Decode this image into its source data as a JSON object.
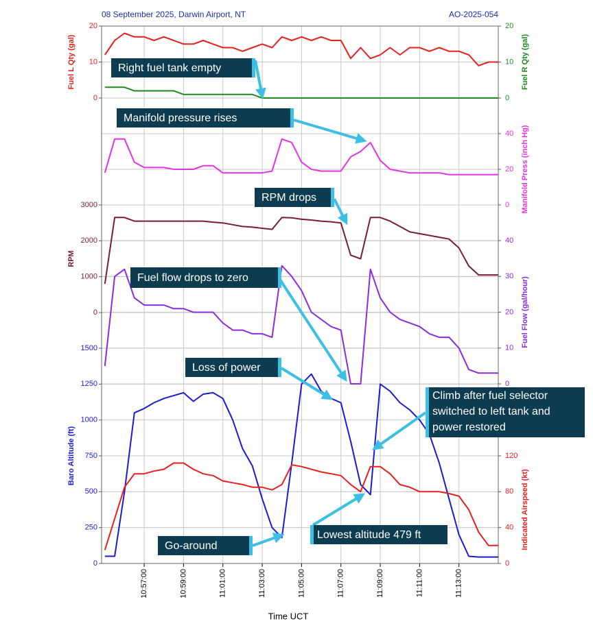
{
  "chart_data": {
    "type": "line",
    "subtitle": "08 September 2025, Darwin Airport, NT",
    "report_id": "AO-2025-054",
    "xlabel": "Time UCT",
    "grid": true,
    "x": [
      "10:55:00",
      "10:55:30",
      "10:56:00",
      "10:56:30",
      "10:57:00",
      "10:57:30",
      "10:58:00",
      "10:58:30",
      "10:59:00",
      "10:59:30",
      "11:00:00",
      "11:00:30",
      "11:01:00",
      "11:01:30",
      "11:02:00",
      "11:02:30",
      "11:03:00",
      "11:03:30",
      "11:04:00",
      "11:04:30",
      "11:05:00",
      "11:05:30",
      "11:06:00",
      "11:06:30",
      "11:07:00",
      "11:07:30",
      "11:08:00",
      "11:08:30",
      "11:09:00",
      "11:09:30",
      "11:10:00",
      "11:10:30",
      "11:11:00",
      "11:11:30",
      "11:12:00",
      "11:12:30",
      "11:13:00",
      "11:13:30",
      "11:14:00",
      "11:14:30",
      "11:15:00"
    ],
    "xlim": [
      "10:54:50",
      "11:15:00"
    ],
    "xticks": [
      "10:57:00",
      "10:59:00",
      "11:01:00",
      "11:03:00",
      "11:05:00",
      "11:07:00",
      "11:09:00",
      "11:11:00",
      "11:13:00"
    ],
    "axes": [
      {
        "label": "Fuel L Qty (gal)",
        "side": "left",
        "color": "#e8201c",
        "lim": [
          0,
          20
        ],
        "ticks": [
          0,
          10,
          20
        ]
      },
      {
        "label": "Fuel R Qty (gal)",
        "side": "right",
        "color": "#1e8a1e",
        "lim": [
          0,
          20
        ],
        "ticks": [
          0,
          10,
          20
        ]
      },
      {
        "label": "Manifold Press (inch Hg)",
        "side": "right",
        "color": "#e632e6",
        "lim": [
          0,
          40
        ],
        "ticks": [
          0,
          20,
          40
        ]
      },
      {
        "label": "RPM",
        "side": "left",
        "color": "#7a1a3a",
        "lim": [
          0,
          3000
        ],
        "ticks": [
          0,
          1000,
          2000,
          3000
        ]
      },
      {
        "label": "Fuel Flow (gal/hour)",
        "side": "right",
        "color": "#8a2be2",
        "lim": [
          0,
          40
        ],
        "ticks": [
          0,
          10,
          20,
          30,
          40
        ]
      },
      {
        "label": "Baro Altitude (ft)",
        "side": "left",
        "color": "#1a1ad8",
        "lim": [
          0,
          1500
        ],
        "ticks": [
          0,
          250,
          500,
          750,
          1000,
          1250,
          1500
        ]
      },
      {
        "label": "Indicated Airspeed (kt)",
        "side": "right",
        "color": "#e8201c",
        "lim": [
          0,
          120
        ],
        "ticks": [
          0,
          40,
          80,
          120
        ]
      }
    ],
    "series": [
      {
        "name": "Fuel L Qty",
        "axis": 0,
        "color": "#e8201c",
        "values": [
          12,
          16,
          18,
          17,
          17,
          16,
          17,
          16,
          15,
          15,
          16,
          15,
          14,
          14,
          13,
          14,
          15,
          14,
          17,
          16,
          17,
          16,
          17,
          16,
          16,
          11,
          14,
          11,
          12,
          14,
          12,
          14,
          14,
          13,
          14,
          13,
          13,
          12,
          9,
          10,
          10
        ]
      },
      {
        "name": "Fuel R Qty",
        "axis": 1,
        "color": "#1e8a1e",
        "values": [
          3,
          3,
          3,
          2,
          2,
          2,
          2,
          2,
          1,
          1,
          1,
          1,
          1,
          1,
          1,
          1,
          0,
          0,
          0,
          0,
          0,
          0,
          0,
          0,
          0,
          0,
          0,
          0,
          0,
          0,
          0,
          0,
          0,
          0,
          0,
          0,
          0,
          0,
          0,
          0,
          0
        ]
      },
      {
        "name": "Manifold Press",
        "axis": 2,
        "color": "#e632e6",
        "values": [
          18,
          37,
          37,
          24,
          21,
          21,
          21,
          20,
          20,
          20,
          22,
          22,
          18,
          18,
          18,
          18,
          18,
          19,
          37,
          35,
          24,
          20,
          19,
          19,
          19,
          27,
          30,
          35,
          25,
          20,
          19,
          18,
          18,
          18,
          18,
          17,
          17,
          17,
          17,
          17,
          17
        ]
      },
      {
        "name": "RPM",
        "axis": 3,
        "color": "#7a1a3a",
        "values": [
          800,
          2650,
          2650,
          2550,
          2550,
          2550,
          2550,
          2550,
          2550,
          2550,
          2550,
          2520,
          2500,
          2450,
          2400,
          2380,
          2350,
          2320,
          2650,
          2640,
          2600,
          2580,
          2550,
          2530,
          2500,
          1600,
          1500,
          2650,
          2650,
          2550,
          2400,
          2250,
          2200,
          2150,
          2100,
          2050,
          1800,
          1300,
          1050,
          1050,
          1050
        ]
      },
      {
        "name": "Fuel Flow",
        "axis": 4,
        "color": "#8a2be2",
        "values": [
          5,
          30,
          32,
          24,
          22,
          22,
          22,
          21,
          21,
          20,
          20,
          20,
          17,
          15,
          15,
          14,
          14,
          13,
          33,
          30,
          26,
          20,
          18,
          16,
          15,
          0,
          0,
          32,
          24,
          20,
          18,
          17,
          16,
          14,
          13,
          13,
          10,
          4,
          3,
          3,
          3
        ]
      },
      {
        "name": "Baro Altitude",
        "axis": 5,
        "color": "#1a1ad8",
        "values": [
          50,
          50,
          500,
          1050,
          1080,
          1120,
          1150,
          1170,
          1190,
          1130,
          1180,
          1190,
          1150,
          1000,
          800,
          680,
          450,
          250,
          180,
          700,
          1250,
          1320,
          1200,
          1150,
          1120,
          850,
          550,
          479,
          1250,
          1200,
          1120,
          1070,
          1000,
          900,
          700,
          450,
          200,
          50,
          45,
          45,
          45
        ]
      },
      {
        "name": "Indicated Airspeed",
        "axis": 6,
        "color": "#e8201c",
        "values": [
          15,
          50,
          85,
          100,
          100,
          103,
          105,
          112,
          112,
          105,
          100,
          98,
          92,
          90,
          88,
          85,
          85,
          82,
          88,
          110,
          108,
          105,
          102,
          100,
          98,
          88,
          80,
          108,
          108,
          100,
          88,
          85,
          80,
          80,
          80,
          78,
          75,
          60,
          35,
          20,
          20
        ]
      }
    ],
    "annotations": [
      {
        "text": "Right fuel tank empty"
      },
      {
        "text": "Manifold pressure rises"
      },
      {
        "text": "RPM drops"
      },
      {
        "text": "Fuel flow drops to zero"
      },
      {
        "text": "Loss of power"
      },
      {
        "lines": [
          "Climb after fuel selector",
          "switched to left tank and",
          "power restored"
        ]
      },
      {
        "text": "Lowest altitude 479 ft"
      },
      {
        "text": "Go-around"
      }
    ]
  }
}
